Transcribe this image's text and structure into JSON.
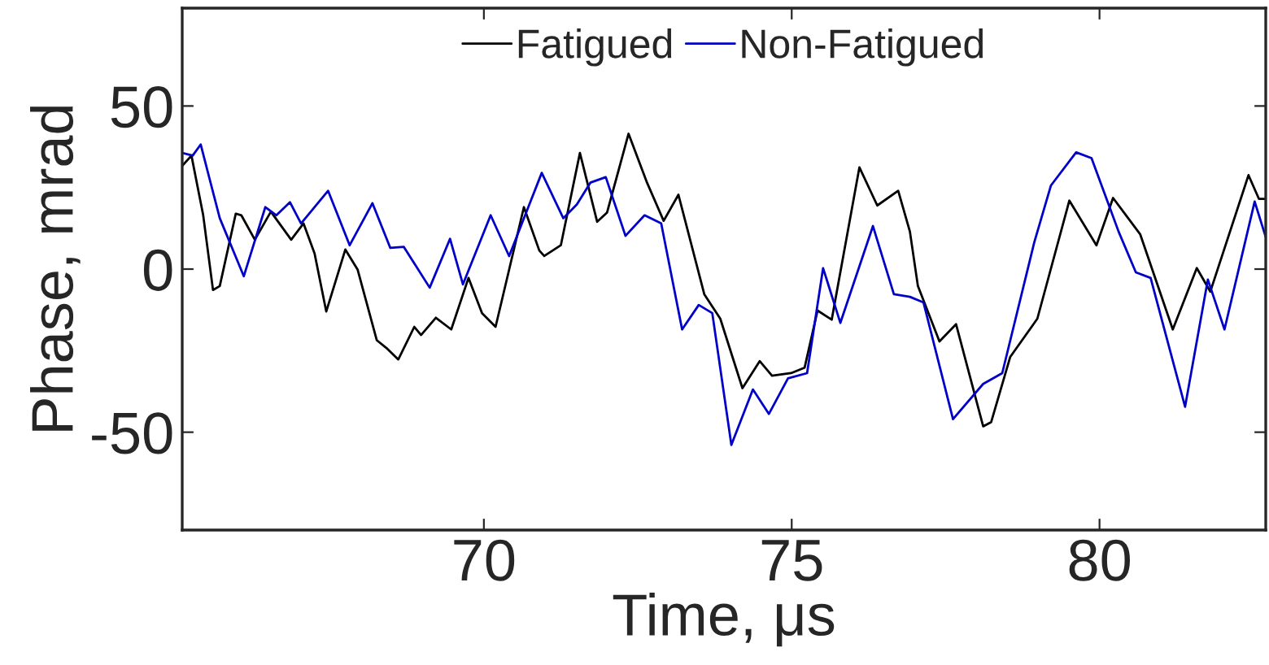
{
  "chart_data": {
    "type": "line",
    "xlabel": "Time, μs",
    "ylabel": "Phase, mrad",
    "xlim": [
      65.1,
      82.7
    ],
    "ylim": [
      -80,
      80
    ],
    "xticks": [
      70,
      75,
      80
    ],
    "yticks": [
      -50,
      0,
      50
    ],
    "grid": false,
    "legend": "top",
    "marker": "none",
    "line_style": "solid",
    "series": [
      {
        "name": "Fatigued",
        "color": "#000000",
        "x": [
          65.1,
          65.25,
          65.44,
          65.6,
          65.71,
          65.97,
          66.06,
          66.28,
          66.54,
          66.87,
          67.07,
          67.25,
          67.44,
          67.75,
          67.95,
          68.26,
          68.43,
          68.61,
          68.87,
          68.98,
          69.22,
          69.47,
          69.75,
          69.97,
          70.19,
          70.41,
          70.65,
          70.9,
          70.98,
          71.25,
          71.56,
          71.84,
          72.0,
          72.35,
          72.65,
          72.92,
          73.16,
          73.58,
          73.84,
          74.2,
          74.48,
          74.68,
          74.99,
          75.21,
          75.42,
          75.65,
          76.1,
          76.39,
          76.73,
          76.92,
          77.05,
          77.4,
          77.67,
          78.11,
          78.24,
          78.55,
          78.99,
          79.51,
          79.95,
          80.22,
          80.66,
          81.19,
          81.58,
          81.8,
          82.42,
          82.59,
          82.7
        ],
        "values": [
          31.6,
          34.8,
          16.6,
          -6.4,
          -5.2,
          17,
          16.5,
          9,
          17.6,
          9,
          14,
          4.8,
          -13,
          6,
          -0.2,
          -21.8,
          -24.4,
          -27.7,
          -17.7,
          -20.2,
          -14.9,
          -18.5,
          -2.7,
          -13.5,
          -17.7,
          -0.2,
          19,
          5.7,
          4,
          7.3,
          35.6,
          14.5,
          17.3,
          41.5,
          26.5,
          14.8,
          22.8,
          -7.7,
          -15.2,
          -36.5,
          -28.2,
          -32.7,
          -31.9,
          -30.2,
          -12.7,
          -15.5,
          31.2,
          19.5,
          24,
          11.5,
          -5.2,
          -22.2,
          -16.9,
          -48.2,
          -46.9,
          -26.9,
          -15.2,
          21,
          7.3,
          21.8,
          10.7,
          -18.5,
          0.3,
          -6.9,
          28.8,
          21.5,
          21.5
        ]
      },
      {
        "name": "Non-Fatigued",
        "color": "#0000c8",
        "x": [
          65.1,
          65.27,
          65.4,
          65.71,
          66.1,
          66.45,
          66.63,
          66.85,
          67.03,
          67.47,
          67.82,
          68.19,
          68.48,
          68.7,
          69.12,
          69.45,
          69.66,
          70.11,
          70.41,
          70.94,
          71.29,
          71.51,
          71.73,
          71.98,
          72.3,
          72.61,
          72.88,
          73.22,
          73.49,
          73.71,
          74.02,
          74.37,
          74.63,
          74.94,
          75.25,
          75.51,
          75.79,
          76.32,
          76.66,
          76.92,
          77.14,
          77.62,
          78.11,
          78.42,
          78.94,
          79.21,
          79.62,
          79.87,
          80.31,
          80.59,
          80.83,
          81.39,
          81.76,
          82.03,
          82.52,
          82.7
        ],
        "values": [
          35.6,
          34.8,
          38.2,
          15.6,
          -2.2,
          19,
          16.5,
          20.5,
          14,
          24,
          7.3,
          20.2,
          6.5,
          6.8,
          -5.7,
          9.3,
          -4.7,
          16.5,
          4,
          29.5,
          15.6,
          19.8,
          26.5,
          28.2,
          10.2,
          16.5,
          14,
          -18.5,
          -11,
          -13.5,
          -53.9,
          -36.9,
          -44.4,
          -33.5,
          -31.9,
          0.3,
          -16.5,
          13.2,
          -7.7,
          -8.5,
          -10.2,
          -46,
          -35.2,
          -31.9,
          8.2,
          25.6,
          35.8,
          34,
          11.5,
          -1,
          -2.7,
          -42.2,
          -3.2,
          -18.5,
          20.7,
          9.8
        ]
      }
    ]
  }
}
